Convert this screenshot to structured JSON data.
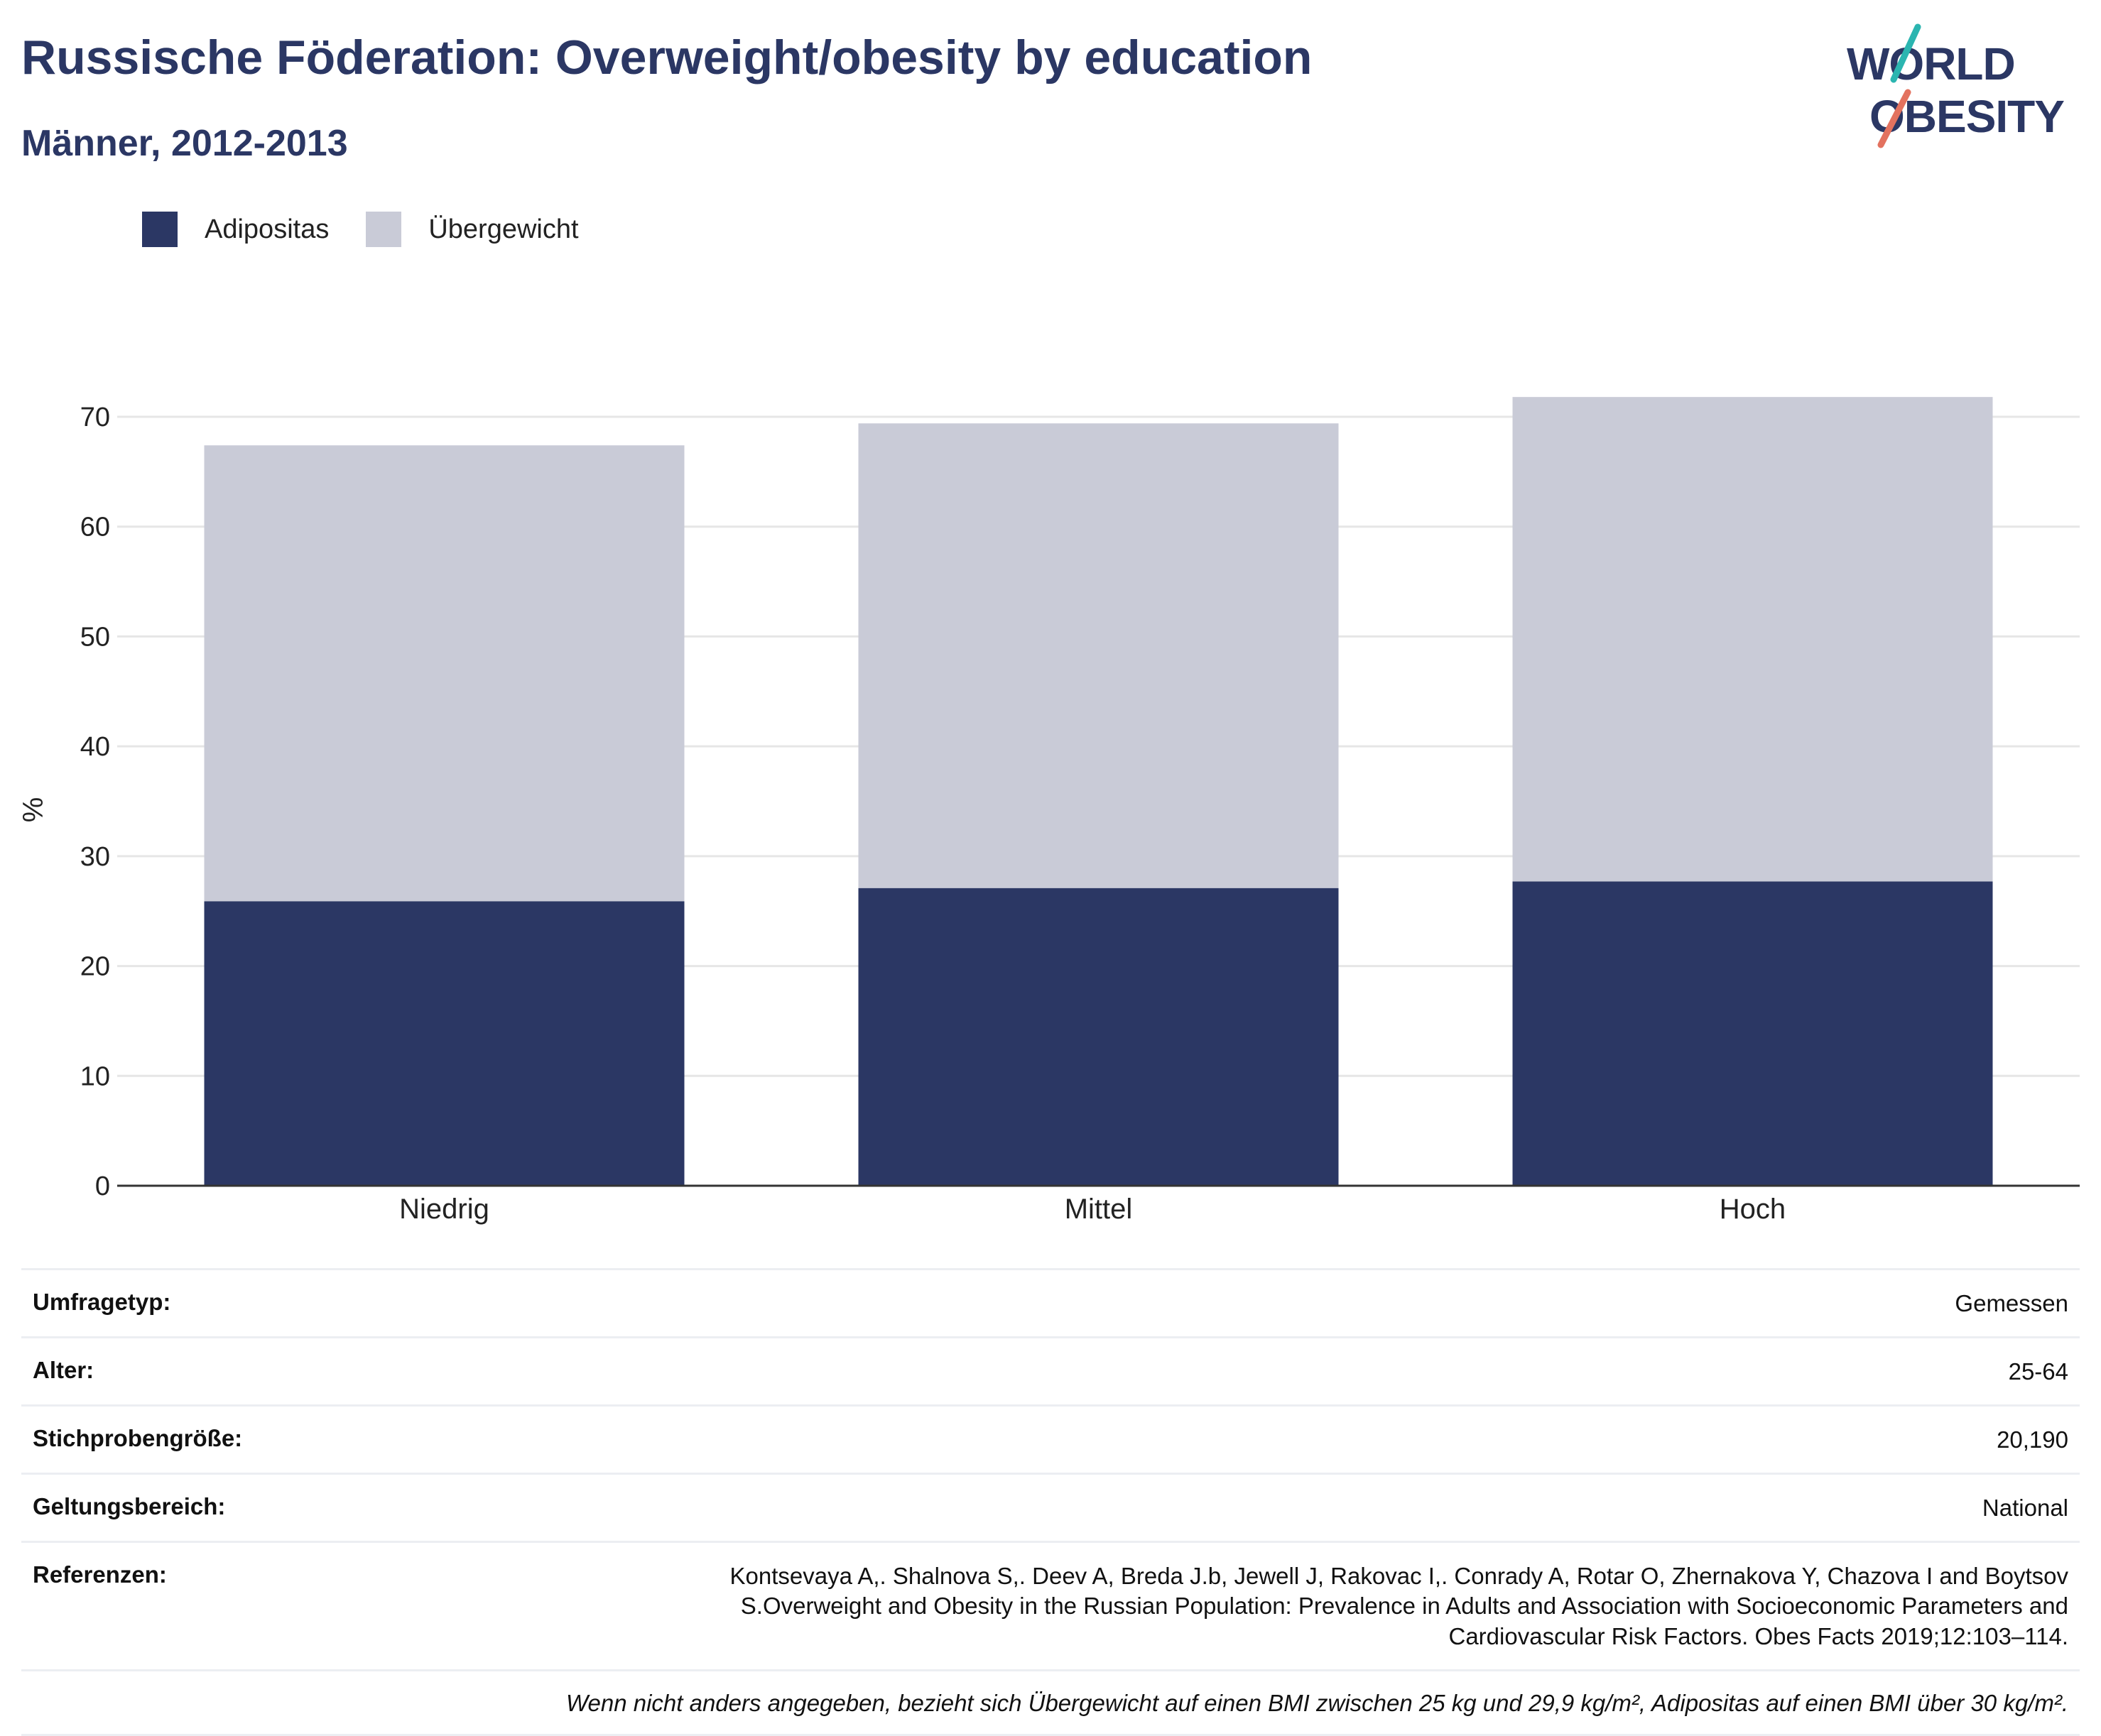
{
  "header": {
    "title": "Russische Föderation: Overweight/obesity by education",
    "subtitle": "Männer, 2012-2013"
  },
  "logo": {
    "line1": "WORLD",
    "line2": "OBESITY"
  },
  "legend": [
    {
      "label": "Adipositas",
      "color": "#2b3764"
    },
    {
      "label": "Übergewicht",
      "color": "#c9cbd7"
    }
  ],
  "chart_data": {
    "type": "bar",
    "stacked": true,
    "categories": [
      "Niedrig",
      "Mittel",
      "Hoch"
    ],
    "series": [
      {
        "name": "Adipositas",
        "color": "#2b3764",
        "values": [
          25.9,
          27.1,
          27.7
        ]
      },
      {
        "name": "Übergewicht",
        "color": "#c9cbd7",
        "values": [
          41.5,
          42.3,
          44.1
        ]
      }
    ],
    "ylabel": "%",
    "xlabel": "",
    "ylim": [
      0,
      70
    ],
    "yticks": [
      0,
      10,
      20,
      30,
      40,
      50,
      60,
      70
    ],
    "grid": true,
    "legend_position": "top-left"
  },
  "meta": {
    "rows": [
      {
        "label": "Umfragetyp:",
        "value": "Gemessen"
      },
      {
        "label": "Alter:",
        "value": "25-64"
      },
      {
        "label": "Stichprobengröße:",
        "value": "20,190"
      },
      {
        "label": "Geltungsbereich:",
        "value": "National"
      },
      {
        "label": "Referenzen:",
        "value": "Kontsevaya A,. Shalnova S,. Deev A, Breda J.b, Jewell J, Rakovac I,. Conrady A, Rotar O, Zhernakova Y, Chazova I and Boytsov S.Overweight and Obesity in the Russian Population: Prevalence in Adults and Association with Socioeconomic Parameters and Cardiovascular Risk Factors. Obes Facts 2019;12:103–114."
      }
    ],
    "note": "Wenn nicht anders angegeben, bezieht sich Übergewicht auf einen BMI zwischen 25 kg und 29,9 kg/m², Adipositas auf einen BMI über 30 kg/m²."
  }
}
